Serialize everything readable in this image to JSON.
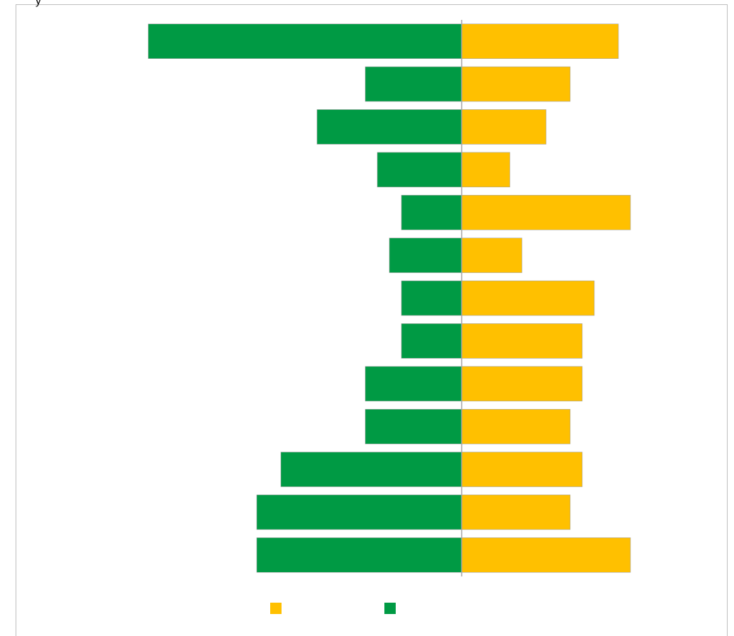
{
  "chart_data": {
    "type": "diverging-bar",
    "title": "y",
    "series": [
      {
        "color": "#ffc000",
        "values": [
          13,
          9,
          7,
          4,
          14,
          5,
          11,
          10,
          10,
          9,
          10,
          9,
          14
        ]
      },
      {
        "color": "#009a44",
        "values": [
          -26,
          -8,
          -12,
          -7,
          -5,
          -6,
          -5,
          -5,
          -8,
          -8,
          -15,
          -17,
          -17
        ]
      }
    ],
    "xlim": [
      -30,
      20
    ]
  }
}
